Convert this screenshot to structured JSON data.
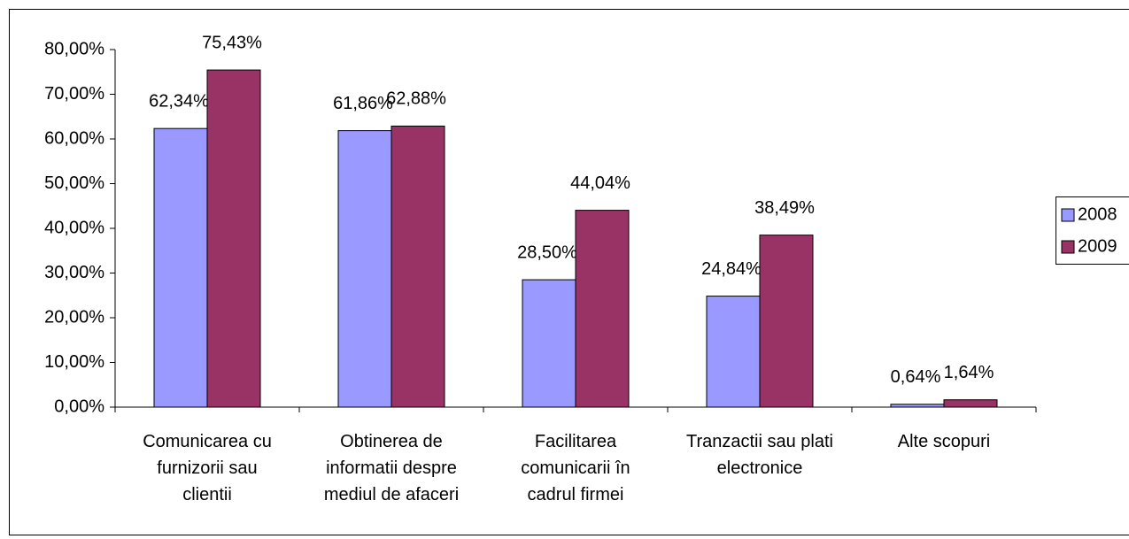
{
  "chart_data": {
    "type": "bar",
    "categories": [
      "Comunicarea cu furnizorii sau clientii",
      "Obtinerea de informatii despre mediul de afaceri",
      "Facilitarea comunicarii în cadrul firmei",
      "Tranzactii sau plati electronice",
      "Alte scopuri"
    ],
    "series": [
      {
        "name": "2008",
        "color": "#9999ff",
        "values": [
          62.34,
          61.86,
          28.5,
          24.84,
          0.64
        ],
        "value_labels": [
          "62,34%",
          "61,86%",
          "28,50%",
          "24,84%",
          "0,64%"
        ]
      },
      {
        "name": "2009",
        "color": "#993366",
        "values": [
          75.43,
          62.88,
          44.04,
          38.49,
          1.64
        ],
        "value_labels": [
          "75,43%",
          "62,88%",
          "44,04%",
          "38,49%",
          "1,64%"
        ]
      }
    ],
    "ylim": [
      0,
      80
    ],
    "yticks": [
      {
        "value": 0,
        "label": "0,00%"
      },
      {
        "value": 10,
        "label": "10,00%"
      },
      {
        "value": 20,
        "label": "20,00%"
      },
      {
        "value": 30,
        "label": "30,00%"
      },
      {
        "value": 40,
        "label": "40,00%"
      },
      {
        "value": 50,
        "label": "50,00%"
      },
      {
        "value": 60,
        "label": "60,00%"
      },
      {
        "value": 70,
        "label": "70,00%"
      },
      {
        "value": 80,
        "label": "80,00%"
      }
    ],
    "legend": "right"
  }
}
